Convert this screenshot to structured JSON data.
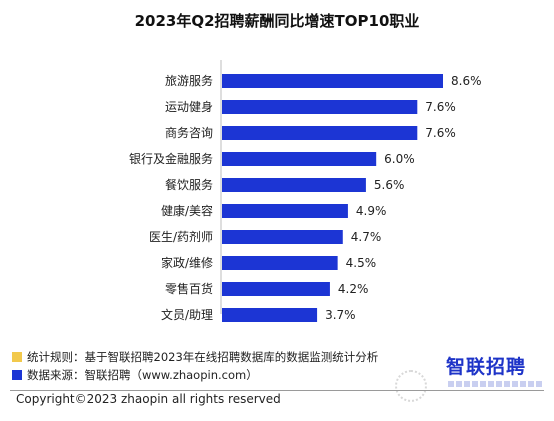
{
  "chart_data": {
    "type": "bar",
    "orientation": "horizontal",
    "title": "2023年Q2招聘薪酬同比增速TOP10职业",
    "categories": [
      "旅游服务",
      "运动健身",
      "商务咨询",
      "银行及金融服务",
      "餐饮服务",
      "健康/美容",
      "医生/药剂师",
      "家政/维修",
      "零售百货",
      "文员/助理"
    ],
    "values": [
      8.6,
      7.6,
      7.6,
      6.0,
      5.6,
      4.9,
      4.7,
      4.5,
      4.2,
      3.7
    ],
    "value_labels": [
      "8.6%",
      "7.6%",
      "7.6%",
      "6.0%",
      "5.6%",
      "4.9%",
      "4.7%",
      "4.5%",
      "4.2%",
      "3.7%"
    ],
    "xlim": [
      0,
      8.6
    ],
    "grid": false,
    "bar_color": "#1c35d4"
  },
  "notes": {
    "rule_text": "统计规则：基于智联招聘2023年在线招聘数据库的数据监测统计分析",
    "rule_color": "#f2c94c",
    "source_text": "数据来源：智联招聘（www.zhaopin.com）",
    "source_color": "#1c35d4"
  },
  "logo": {
    "text": "智联招聘"
  },
  "footer": {
    "copyright": "Copyright©2023 zhaopin all rights reserved"
  }
}
